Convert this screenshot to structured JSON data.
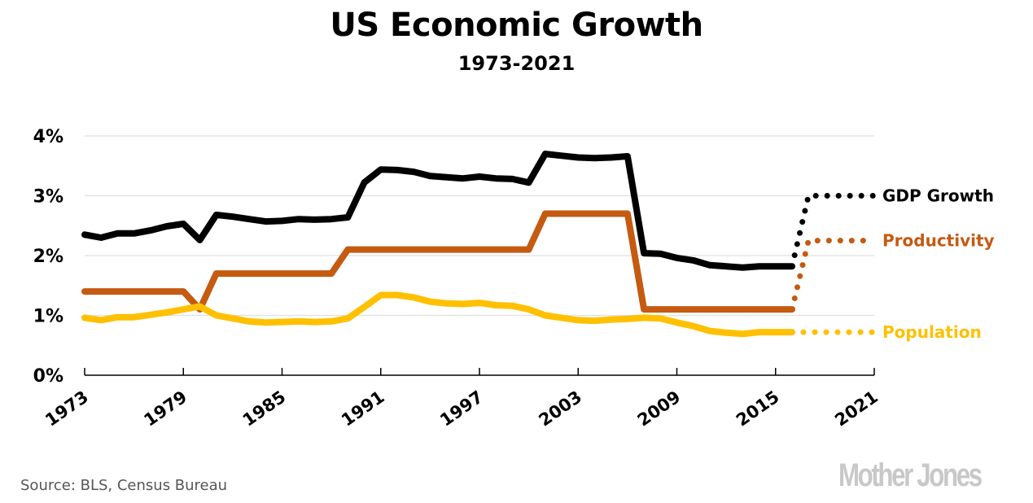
{
  "chart_data": {
    "type": "line",
    "title": "US Economic Growth",
    "subtitle": "1973-2021",
    "xlabel": "",
    "ylabel": "",
    "xlim": [
      1973,
      2021
    ],
    "ylim": [
      0,
      4
    ],
    "grid": true,
    "x_ticks": [
      "1973",
      "1979",
      "1985",
      "1991",
      "1997",
      "2003",
      "2009",
      "2015",
      "2021"
    ],
    "y_ticks": [
      "0%",
      "1%",
      "2%",
      "3%",
      "4%"
    ],
    "y_tick_values": [
      0,
      1,
      2,
      3,
      4
    ],
    "x": [
      1973,
      1974,
      1975,
      1976,
      1977,
      1978,
      1979,
      1980,
      1981,
      1982,
      1983,
      1984,
      1985,
      1986,
      1987,
      1988,
      1989,
      1990,
      1991,
      1992,
      1993,
      1994,
      1995,
      1996,
      1997,
      1998,
      1999,
      2000,
      2001,
      2002,
      2003,
      2004,
      2005,
      2006,
      2007,
      2008,
      2009,
      2010,
      2011,
      2012,
      2013,
      2014,
      2015,
      2016
    ],
    "series": [
      {
        "name": "GDP Growth",
        "color": "#000000",
        "values": [
          2.35,
          2.3,
          2.37,
          2.37,
          2.42,
          2.49,
          2.53,
          2.26,
          2.68,
          2.65,
          2.61,
          2.57,
          2.58,
          2.61,
          2.6,
          2.61,
          2.64,
          3.22,
          3.44,
          3.43,
          3.4,
          3.33,
          3.31,
          3.29,
          3.32,
          3.29,
          3.28,
          3.22,
          3.7,
          3.67,
          3.64,
          3.63,
          3.64,
          3.66,
          2.04,
          2.03,
          1.96,
          1.92,
          1.84,
          1.82,
          1.8,
          1.82,
          1.82,
          1.82
        ],
        "projection": {
          "x": [
            2016,
            2017,
            2021
          ],
          "values": [
            1.82,
            3.0,
            3.0
          ],
          "style": "dotted"
        }
      },
      {
        "name": "Productivity",
        "color": "#C55A11",
        "values": [
          1.4,
          1.4,
          1.4,
          1.4,
          1.4,
          1.4,
          1.4,
          1.1,
          1.7,
          1.7,
          1.7,
          1.7,
          1.7,
          1.7,
          1.7,
          1.7,
          2.1,
          2.1,
          2.1,
          2.1,
          2.1,
          2.1,
          2.1,
          2.1,
          2.1,
          2.1,
          2.1,
          2.1,
          2.7,
          2.7,
          2.7,
          2.7,
          2.7,
          2.7,
          1.1,
          1.1,
          1.1,
          1.1,
          1.1,
          1.1,
          1.1,
          1.1,
          1.1,
          1.1
        ],
        "projection": {
          "x": [
            2016,
            2017,
            2021
          ],
          "values": [
            1.1,
            2.25,
            2.25
          ],
          "style": "dotted"
        }
      },
      {
        "name": "Population",
        "color": "#FFC000",
        "values": [
          0.96,
          0.92,
          0.97,
          0.97,
          1.01,
          1.05,
          1.1,
          1.15,
          1.0,
          0.95,
          0.9,
          0.88,
          0.89,
          0.9,
          0.89,
          0.9,
          0.95,
          1.14,
          1.34,
          1.34,
          1.3,
          1.23,
          1.2,
          1.19,
          1.21,
          1.17,
          1.16,
          1.1,
          1.0,
          0.96,
          0.92,
          0.91,
          0.93,
          0.94,
          0.96,
          0.95,
          0.88,
          0.82,
          0.74,
          0.71,
          0.69,
          0.72,
          0.72,
          0.72
        ],
        "projection": {
          "x": [
            2016,
            2021
          ],
          "values": [
            0.72,
            0.72
          ],
          "style": "dotted"
        }
      }
    ],
    "legend": "right, inline labels at line ends",
    "source": "Source: BLS, Census Bureau"
  },
  "branding": {
    "logo_text": "Mother Jones",
    "logo_color": "#C8C8C8"
  },
  "colors": {
    "gridline": "#E0E0E0",
    "axis": "#000000",
    "source_text": "#555555"
  }
}
